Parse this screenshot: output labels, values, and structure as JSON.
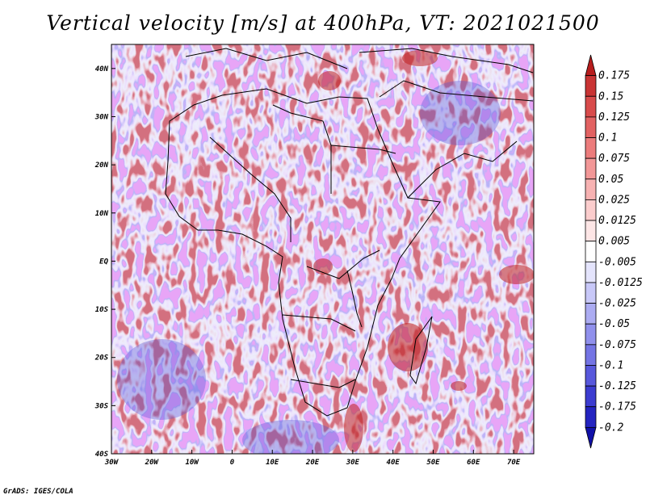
{
  "title": "Vertical velocity [m/s] at 400hPa, VT: 2021021500",
  "credit": "GrADS: IGES/COLA",
  "map": {
    "lon_range": [
      -30,
      75
    ],
    "lat_range": [
      -40,
      45
    ],
    "lon_ticks": [
      {
        "value": -30,
        "label": "30W"
      },
      {
        "value": -20,
        "label": "20W"
      },
      {
        "value": -10,
        "label": "10W"
      },
      {
        "value": 0,
        "label": "0"
      },
      {
        "value": 10,
        "label": "10E"
      },
      {
        "value": 20,
        "label": "20E"
      },
      {
        "value": 30,
        "label": "30E"
      },
      {
        "value": 40,
        "label": "40E"
      },
      {
        "value": 50,
        "label": "50E"
      },
      {
        "value": 60,
        "label": "60E"
      },
      {
        "value": 70,
        "label": "70E"
      }
    ],
    "lat_ticks": [
      {
        "value": 40,
        "label": "40N"
      },
      {
        "value": 30,
        "label": "30N"
      },
      {
        "value": 20,
        "label": "20N"
      },
      {
        "value": 10,
        "label": "10N"
      },
      {
        "value": 0,
        "label": "EQ"
      },
      {
        "value": -10,
        "label": "10S"
      },
      {
        "value": -20,
        "label": "20S"
      },
      {
        "value": -30,
        "label": "30S"
      },
      {
        "value": -40,
        "label": "40S"
      }
    ]
  },
  "colorbar": {
    "labels": [
      "0.175",
      "0.15",
      "0.125",
      "0.1",
      "0.075",
      "0.05",
      "0.025",
      "0.0125",
      "0.005",
      "-0.005",
      "-0.0125",
      "-0.025",
      "-0.05",
      "-0.075",
      "-0.1",
      "-0.125",
      "-0.175",
      "-0.2"
    ],
    "colors": [
      "#b71d1d",
      "#c93434",
      "#d84b4b",
      "#e26262",
      "#ec7c7c",
      "#f29797",
      "#f7b2b2",
      "#fbcdcd",
      "#fde6e6",
      "#ffffff",
      "#e4e4fc",
      "#c8c8f8",
      "#acacf2",
      "#9090ec",
      "#7474e4",
      "#5858dc",
      "#3c3cd0",
      "#2424c0",
      "#1010a8"
    ]
  }
}
